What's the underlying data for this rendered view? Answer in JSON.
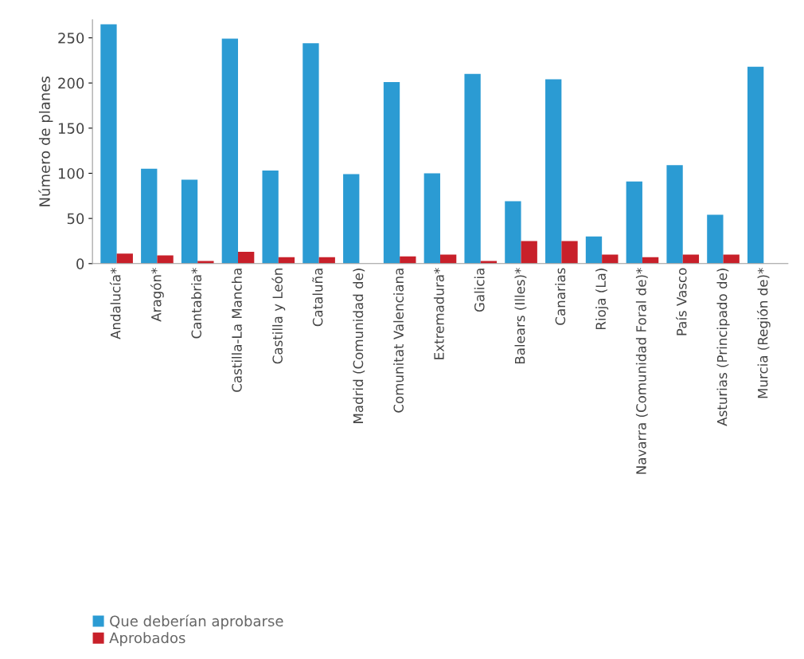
{
  "chart_data": {
    "type": "bar",
    "ylabel": "Número de planes",
    "categories": [
      "Andalucía*",
      "Aragón*",
      "Cantabria*",
      "Castilla-La Mancha",
      "Castilla y León",
      "Cataluña",
      "Madrid (Comunidad de)",
      "Comunitat Valenciana",
      "Extremadura*",
      "Galicia",
      "Balears (Illes)*",
      "Canarias",
      "Rioja (La)",
      "Navarra (Comunidad Foral de)*",
      "País Vasco",
      "Asturias (Principado de)",
      "Murcia (Región de)*"
    ],
    "series": [
      {
        "name": "Que deberían aprobarse",
        "color": "#2b9bd3",
        "values": [
          265,
          105,
          93,
          249,
          103,
          244,
          99,
          201,
          100,
          210,
          69,
          204,
          30,
          91,
          109,
          54,
          218
        ]
      },
      {
        "name": "Aprobados",
        "color": "#c8202a",
        "values": [
          11,
          9,
          3,
          13,
          7,
          7,
          0,
          8,
          10,
          3,
          25,
          25,
          10,
          7,
          10,
          10,
          0
        ]
      }
    ],
    "ylim": [
      0,
      270
    ],
    "yticks": [
      0,
      50,
      100,
      150,
      200,
      250
    ],
    "grid": false,
    "legend": "bottom left"
  }
}
